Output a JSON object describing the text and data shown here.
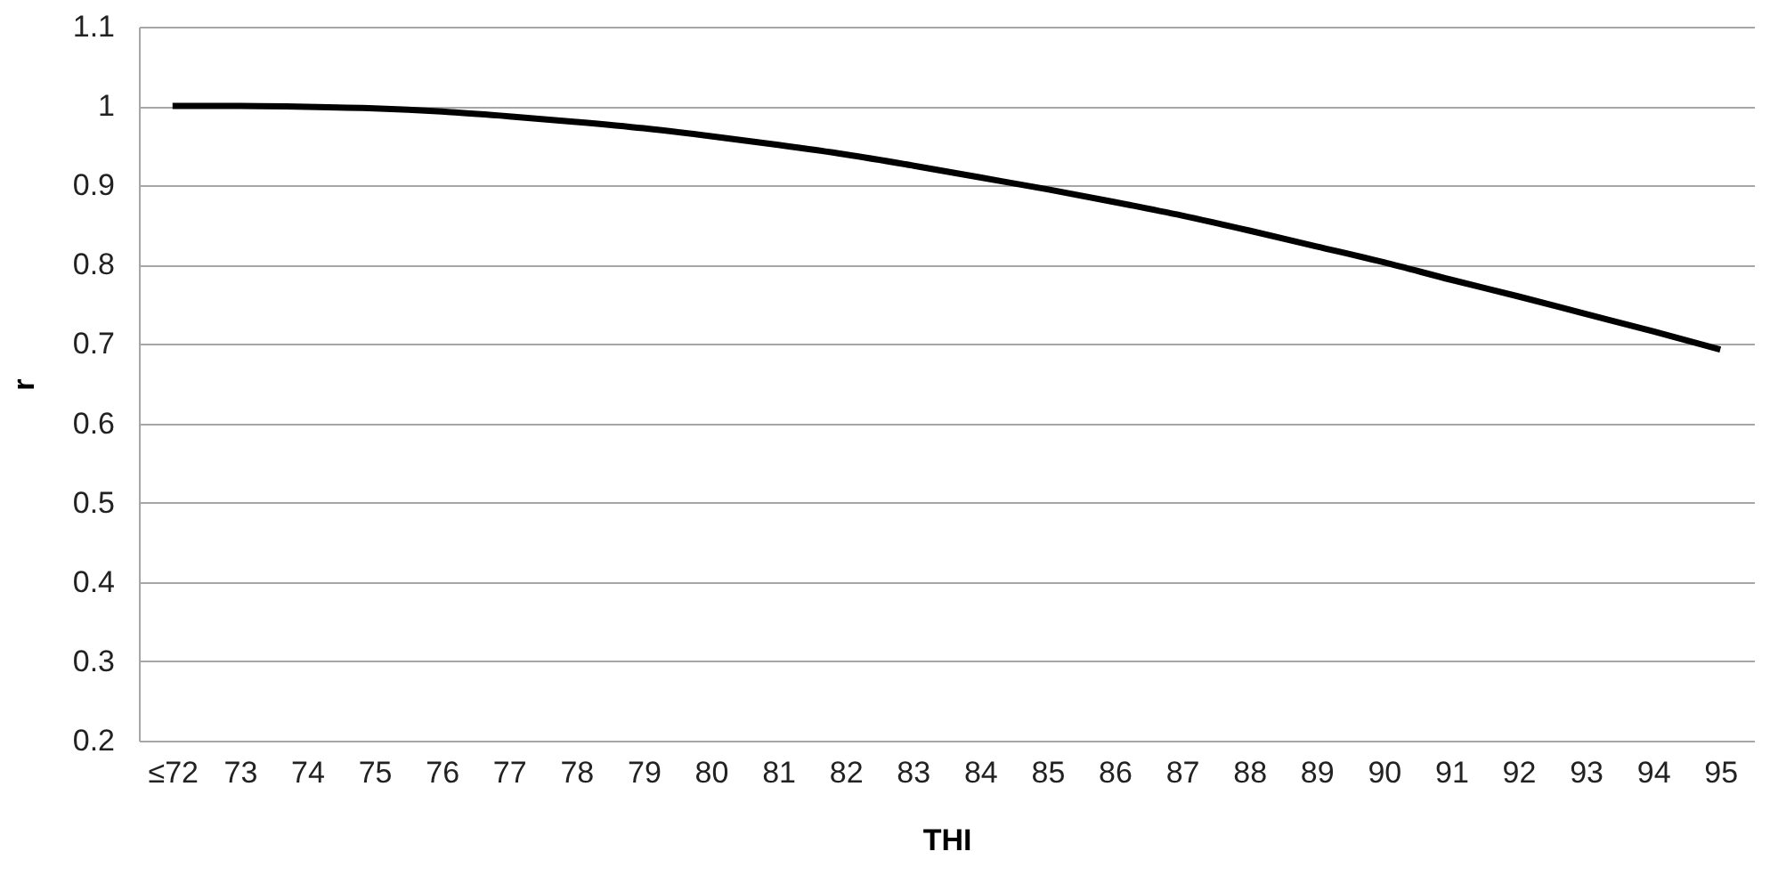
{
  "chart_data": {
    "type": "line",
    "xlabel": "THI",
    "ylabel": "r",
    "categories": [
      "≤72",
      "73",
      "74",
      "75",
      "76",
      "77",
      "78",
      "79",
      "80",
      "81",
      "82",
      "83",
      "84",
      "85",
      "86",
      "87",
      "88",
      "89",
      "90",
      "91",
      "92",
      "93",
      "94",
      "95"
    ],
    "values": [
      1.0,
      1.0,
      0.999,
      0.997,
      0.993,
      0.987,
      0.98,
      0.972,
      0.962,
      0.951,
      0.939,
      0.925,
      0.91,
      0.895,
      0.879,
      0.862,
      0.843,
      0.823,
      0.803,
      0.781,
      0.76,
      0.738,
      0.716,
      0.693
    ],
    "color": "#000000",
    "ylim": [
      0.2,
      1.1
    ],
    "yticks": [
      0.2,
      0.3,
      0.4,
      0.5,
      0.6,
      0.7,
      0.8,
      0.9,
      1,
      1.1
    ],
    "grid": "y"
  }
}
